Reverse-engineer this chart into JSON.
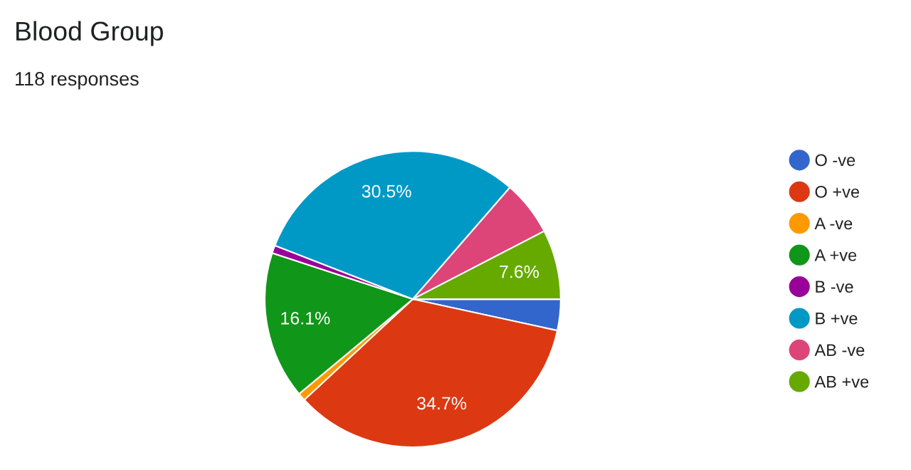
{
  "chart_data": {
    "type": "pie",
    "title": "Blood Group",
    "subtitle": "118 responses",
    "categories": [
      "O -ve",
      "O +ve",
      "A -ve",
      "A +ve",
      "B -ve",
      "B +ve",
      "AB -ve",
      "AB +ve"
    ],
    "values": [
      3.4,
      34.7,
      0.85,
      16.1,
      0.85,
      30.5,
      6.0,
      7.6
    ],
    "colors": [
      "#3366cc",
      "#dc3912",
      "#ff9900",
      "#109618",
      "#990099",
      "#0099c6",
      "#dd4477",
      "#66aa00"
    ],
    "value_labels": [
      null,
      "34.7%",
      null,
      "16.1%",
      null,
      "30.5%",
      null,
      "7.6%"
    ],
    "legend": "right"
  }
}
